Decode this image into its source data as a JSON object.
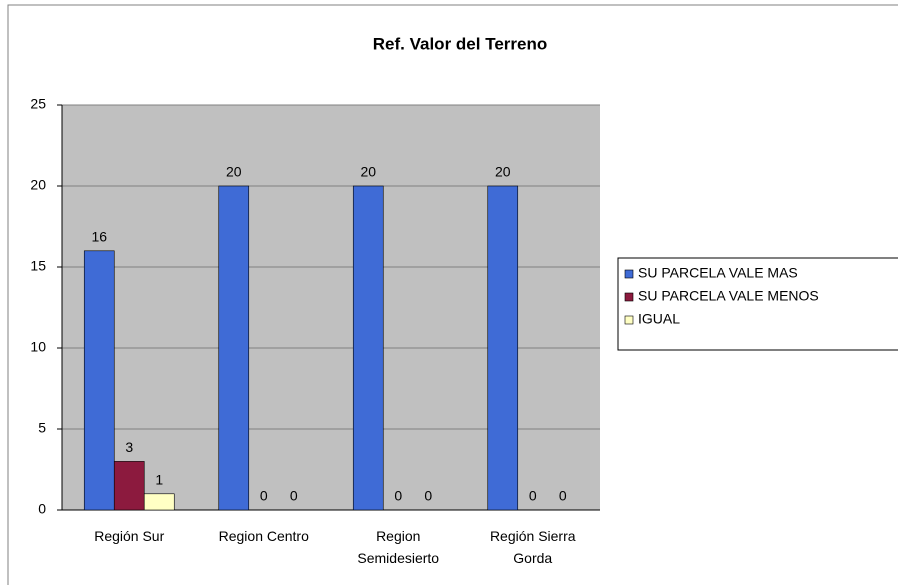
{
  "chart_data": {
    "type": "bar",
    "title": "Ref. Valor del Terreno",
    "categories": [
      "Región Sur",
      "Region Centro",
      "Region Semidesierto",
      "Región Sierra Gorda"
    ],
    "series": [
      {
        "name": "SU PARCELA VALE MAS",
        "color": "#3f6bd6",
        "values": [
          16,
          20,
          20,
          20
        ]
      },
      {
        "name": "SU PARCELA VALE MENOS",
        "color": "#8c1a3e",
        "values": [
          3,
          0,
          0,
          0
        ]
      },
      {
        "name": "IGUAL",
        "color": "#ffffc4",
        "values": [
          1,
          0,
          0,
          0
        ]
      }
    ],
    "ylim": [
      0,
      25
    ],
    "yticks": [
      0,
      5,
      10,
      15,
      20,
      25
    ],
    "grid": true,
    "legend": "right"
  }
}
